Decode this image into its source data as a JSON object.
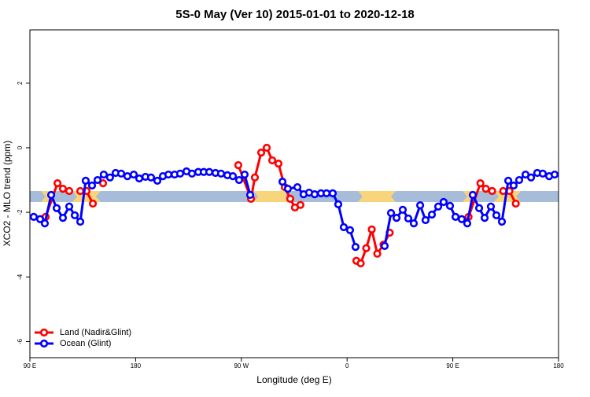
{
  "chart_data": {
    "type": "line",
    "title": "5S-0 May (Ver 10)   2015-01-01 to 2020-12-18",
    "x_label": "Longitude (deg E)",
    "y_label": "XCO2 - MLO trend (ppm)",
    "xlim": [
      90,
      540
    ],
    "ylim": [
      -6.5,
      3.65
    ],
    "xticks": [
      {
        "value": 90,
        "label": "90 E"
      },
      {
        "value": 180,
        "label": "180"
      },
      {
        "value": 270,
        "label": "90 W"
      },
      {
        "value": 360,
        "label": "0"
      },
      {
        "value": 450,
        "label": "90 E"
      },
      {
        "value": 540,
        "label": "180"
      }
    ],
    "yticks": [
      -6,
      -4,
      -2,
      0,
      2
    ],
    "legend": "bottom-left",
    "series": [
      {
        "name": "Land (Nadir&Glint)",
        "color": "#ff0000",
        "x": [
          103.4,
          113.5,
          118.1,
          123.5,
          128,
          132.9,
          138.2,
          143.6,
          148,
          152.3,
          200,
          267.4,
          278.2,
          281.5,
          286.9,
          291.6,
          296.3,
          301.6,
          307.0,
          311.6,
          315.6,
          320.3,
          340,
          367.9,
          371.6,
          376.3,
          381.0,
          385.7,
          391.0,
          396.3,
          430,
          463.4,
          473.5,
          478.1,
          483.5,
          488,
          492.9,
          498.2,
          503.6
        ],
        "values": [
          -2.14,
          -1.1,
          -1.27,
          -1.34,
          null,
          -1.34,
          -1.34,
          -1.73,
          null,
          -1.1,
          null,
          -0.54,
          -1.58,
          -0.92,
          -0.15,
          0.0,
          -0.39,
          -0.49,
          -1.22,
          -1.58,
          -1.85,
          -1.77,
          null,
          -3.5,
          -3.58,
          -3.11,
          -2.53,
          -3.28,
          -3.0,
          -2.63,
          null,
          -2.14,
          -1.1,
          -1.27,
          -1.34,
          null,
          -1.34,
          -1.34,
          -1.73
        ]
      },
      {
        "name": "Ocean (Glint)",
        "color": "#0000ff",
        "x": [
          93.3,
          98.7,
          102.7,
          108.1,
          112.8,
          118.1,
          123.5,
          128.2,
          132.9,
          137.5,
          142.9,
          147.6,
          152.9,
          158.2,
          163.0,
          167.7,
          173.0,
          178.4,
          183.1,
          188.4,
          193.1,
          198.5,
          203.2,
          207.9,
          213.2,
          217.9,
          223.3,
          228.0,
          233.3,
          238.0,
          242.7,
          248.0,
          252.7,
          258.1,
          262.8,
          268.1,
          272.8,
          277.5,
          290,
          305.0,
          309.6,
          317.7,
          323.0,
          327.7,
          332.4,
          337.8,
          342.5,
          347.8,
          352.5,
          357.2,
          362.5,
          367.2,
          380,
          392.0,
          397.4,
          402.1,
          407.4,
          412.1,
          416.8,
          422.2,
          426.8,
          432.2,
          437.6,
          442.2,
          447.6,
          452.3,
          457.6,
          462.3,
          467.0,
          472.4,
          477.1,
          482.4,
          487.1,
          491.8,
          497.2,
          501.8,
          506.5,
          511.9,
          516.6,
          521.9,
          526.6,
          532.0,
          536.7
        ],
        "values": [
          -2.14,
          -2.21,
          -2.34,
          -1.46,
          -1.87,
          -2.17,
          -1.82,
          -2.09,
          -2.29,
          -1.02,
          -1.17,
          -1.0,
          -0.83,
          -0.92,
          -0.78,
          -0.8,
          -0.88,
          -0.83,
          -0.95,
          -0.9,
          -0.92,
          -1.02,
          -0.88,
          -0.83,
          -0.83,
          -0.8,
          -0.73,
          -0.8,
          -0.75,
          -0.75,
          -0.75,
          -0.78,
          -0.8,
          -0.85,
          -0.88,
          -1.0,
          -0.83,
          -1.46,
          null,
          -1.05,
          -1.27,
          -1.22,
          -1.44,
          -1.39,
          -1.44,
          -1.41,
          -1.41,
          -1.41,
          -1.75,
          -2.46,
          -2.55,
          -3.07,
          null,
          -3.04,
          -2.02,
          -2.17,
          -1.92,
          -2.19,
          -2.34,
          -1.78,
          -2.24,
          -2.07,
          -1.82,
          -1.68,
          -1.8,
          -2.14,
          -2.21,
          -2.34,
          -1.46,
          -1.87,
          -2.17,
          -1.82,
          -2.09,
          -2.29,
          -1.02,
          -1.17,
          -1.0,
          -0.83,
          -0.92,
          -0.78,
          -0.8,
          -0.88,
          -0.83
        ]
      }
    ]
  }
}
